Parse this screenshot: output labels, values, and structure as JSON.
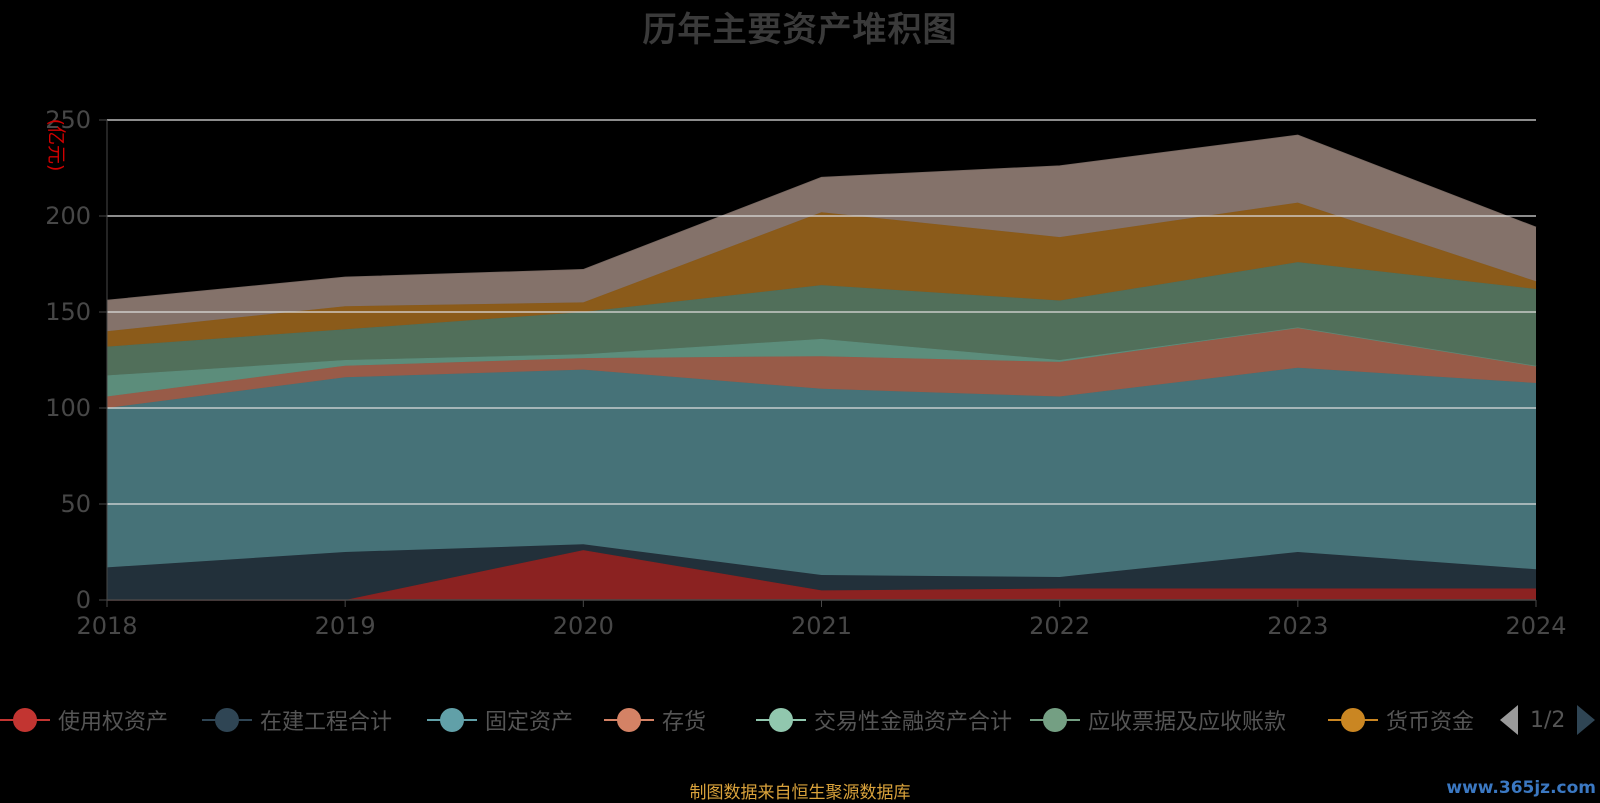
{
  "chart_data": {
    "type": "area",
    "title": "历年主要资产堆积图",
    "ylabel": "(亿元)",
    "xlabel": "",
    "x": [
      "2018",
      "2019",
      "2020",
      "2021",
      "2022",
      "2023",
      "2024"
    ],
    "ylim": [
      0,
      250
    ],
    "yticks": [
      "0",
      "50",
      "100",
      "150",
      "200",
      "250"
    ],
    "grid": true,
    "stacked": true,
    "series": [
      {
        "name": "使用权资产",
        "color": "#8b2221",
        "legend_color": "#c23531",
        "values": [
          0,
          0,
          26,
          5,
          6,
          6,
          6
        ]
      },
      {
        "name": "在建工程合计",
        "color": "#22303a",
        "legend_color": "#2f4554",
        "values": [
          17,
          25,
          3,
          8,
          6,
          19,
          10
        ]
      },
      {
        "name": "固定资产",
        "color": "#467278",
        "legend_color": "#61a0a8",
        "values": [
          83,
          91,
          91,
          97,
          94,
          96,
          97
        ]
      },
      {
        "name": "存货",
        "color": "#985b48",
        "legend_color": "#d48265",
        "values": [
          6,
          6,
          6,
          17,
          18,
          21,
          9
        ]
      },
      {
        "name": "交易性金融资产合计",
        "color": "#5c8d7b",
        "legend_color": "#91c7ae",
        "values": [
          11,
          3,
          2,
          9,
          1,
          0,
          0
        ]
      },
      {
        "name": "应收票据及应收账款",
        "color": "#516f5a",
        "legend_color": "#749f83",
        "values": [
          15,
          16,
          22,
          28,
          31,
          34,
          40
        ]
      },
      {
        "name": "货币资金",
        "color": "#8b5b1a",
        "legend_color": "#ca8622",
        "values": [
          8,
          12,
          5,
          38,
          33,
          31,
          4
        ]
      },
      {
        "name": "",
        "color": "#84726a",
        "legend_color": "#bda29a",
        "values": [
          16,
          15,
          17,
          18,
          37,
          35,
          28
        ]
      }
    ],
    "legend_position": "bottom",
    "legend_page": "1/2"
  },
  "source_note": "制图数据来自恒生聚源数据库",
  "watermark": "www.365jz.com"
}
